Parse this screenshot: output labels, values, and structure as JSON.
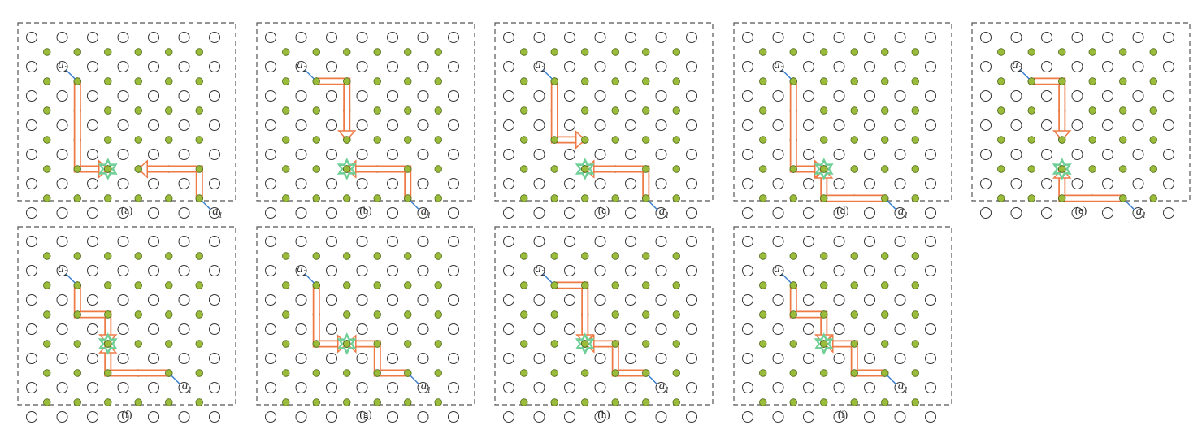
{
  "panels": [
    {
      "caption": "(a)",
      "agents": {
        "a2": {
          "label": "a",
          "sub": "2"
        },
        "a1": {
          "label": "a",
          "sub": "1"
        }
      },
      "path2": [
        [
          2,
          2
        ],
        [
          2,
          5
        ],
        [
          3,
          5
        ]
      ],
      "path1": [
        [
          6,
          6
        ],
        [
          6,
          5
        ],
        [
          4,
          5
        ]
      ]
    },
    {
      "caption": "(b)",
      "agents": {
        "a2": {
          "label": "a",
          "sub": "2"
        },
        "a1": {
          "label": "a",
          "sub": "1"
        }
      },
      "path2": [
        [
          2,
          2
        ],
        [
          3,
          2
        ],
        [
          3,
          4
        ]
      ],
      "path1": [
        [
          5,
          6
        ],
        [
          5,
          5
        ],
        [
          3,
          5
        ]
      ]
    },
    {
      "caption": "(c)",
      "agents": {
        "a2": {
          "label": "a",
          "sub": "2"
        },
        "a1": {
          "label": "a",
          "sub": "1"
        }
      },
      "path2": [
        [
          2,
          2
        ],
        [
          2,
          4
        ],
        [
          3,
          4
        ]
      ],
      "path1": [
        [
          5,
          6
        ],
        [
          5,
          5
        ],
        [
          3,
          5
        ]
      ]
    },
    {
      "caption": "(d)",
      "agents": {
        "a2": {
          "label": "a",
          "sub": "2"
        },
        "a1": {
          "label": "a",
          "sub": "1"
        }
      },
      "path2": [
        [
          2,
          2
        ],
        [
          2,
          5
        ],
        [
          3,
          5
        ]
      ],
      "path1": [
        [
          5,
          6
        ],
        [
          3,
          6
        ],
        [
          3,
          5
        ]
      ]
    },
    {
      "caption": "(e)",
      "agents": {
        "a2": {
          "label": "a",
          "sub": "2"
        },
        "a1": {
          "label": "a",
          "sub": "1"
        }
      },
      "path2": [
        [
          2,
          2
        ],
        [
          3,
          2
        ],
        [
          3,
          4
        ]
      ],
      "path1": [
        [
          5,
          6
        ],
        [
          3,
          6
        ],
        [
          3,
          5
        ]
      ]
    },
    {
      "caption": "(f)",
      "agents": {
        "a2": {
          "label": "a",
          "sub": "2"
        },
        "a1": {
          "label": "a",
          "sub": "1"
        }
      },
      "path2": [
        [
          2,
          2
        ],
        [
          2,
          3
        ],
        [
          3,
          3
        ],
        [
          3,
          4
        ]
      ],
      "path1": [
        [
          5,
          5
        ],
        [
          3,
          5
        ],
        [
          3,
          4
        ]
      ]
    },
    {
      "caption": "(g)",
      "agents": {
        "a2": {
          "label": "a",
          "sub": "2"
        },
        "a1": {
          "label": "a",
          "sub": "1"
        }
      },
      "path2": [
        [
          2,
          2
        ],
        [
          2,
          4
        ],
        [
          3,
          4
        ]
      ],
      "path1": [
        [
          5,
          5
        ],
        [
          4,
          5
        ],
        [
          4,
          4
        ],
        [
          3,
          4
        ]
      ]
    },
    {
      "caption": "(h)",
      "agents": {
        "a2": {
          "label": "a",
          "sub": "2"
        },
        "a1": {
          "label": "a",
          "sub": "1"
        }
      },
      "path2": [
        [
          2,
          2
        ],
        [
          3,
          2
        ],
        [
          3,
          4
        ]
      ],
      "path1": [
        [
          5,
          5
        ],
        [
          4,
          5
        ],
        [
          4,
          4
        ],
        [
          3,
          4
        ]
      ]
    },
    {
      "caption": "(i)",
      "agents": {
        "a2": {
          "label": "a",
          "sub": "2"
        },
        "a1": {
          "label": "a",
          "sub": "1"
        }
      },
      "path2": [
        [
          2,
          2
        ],
        [
          2,
          3
        ],
        [
          3,
          3
        ],
        [
          3,
          4
        ]
      ],
      "path1": [
        [
          5,
          5
        ],
        [
          4,
          5
        ],
        [
          4,
          4
        ],
        [
          3,
          4
        ]
      ]
    }
  ],
  "colors": {
    "frame": "#555555",
    "empty_node": "#333333",
    "occupied_node_fill": "#9bbb3b",
    "occupied_node_stroke": "#4f6b1a",
    "path_stroke": "#ee7a45",
    "path_inner": "#ffffff",
    "agent_pointer": "#3a7fd0",
    "goal_star": "#6fcf97"
  },
  "icons": {
    "goal": "star-icon",
    "agent_pointer": "arrow-pointer-icon"
  }
}
